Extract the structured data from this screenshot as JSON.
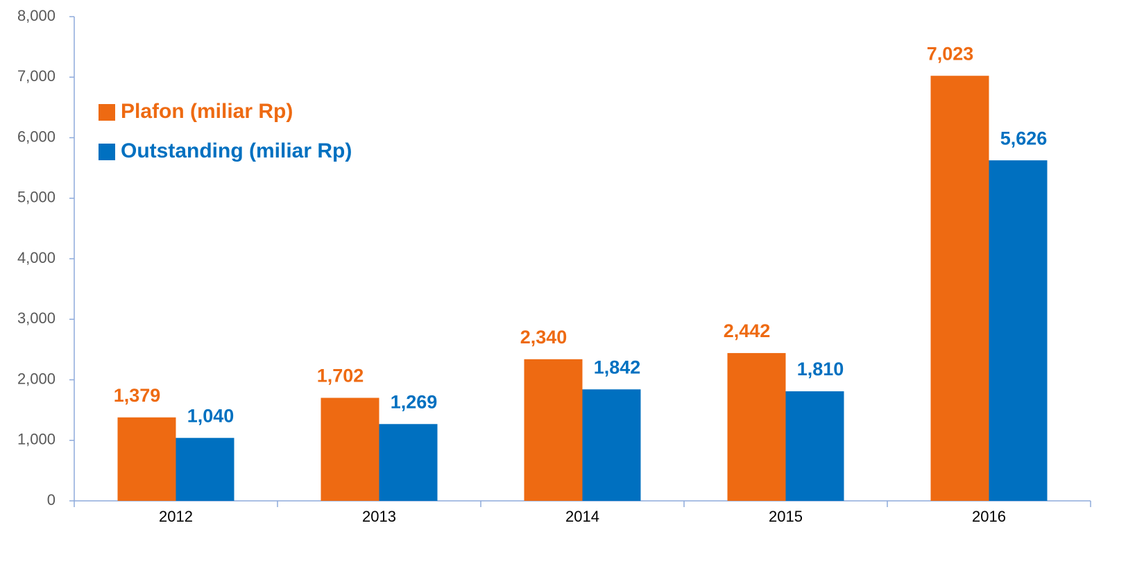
{
  "chart_data": {
    "type": "bar",
    "categories": [
      "2012",
      "2013",
      "2014",
      "2015",
      "2016"
    ],
    "series": [
      {
        "name": "Plafon (miliar Rp)",
        "color": "#ee6a12",
        "values": [
          1379,
          1702,
          2340,
          2442,
          7023
        ],
        "value_labels": [
          "1,379",
          "1,702",
          "2,340",
          "2,442",
          "7,023"
        ]
      },
      {
        "name": "Outstanding (miliar Rp)",
        "color": "#0070c0",
        "values": [
          1040,
          1269,
          1842,
          1810,
          5626
        ],
        "value_labels": [
          "1,040",
          "1,269",
          "1,842",
          "1,810",
          "5,626"
        ]
      }
    ],
    "ylim": [
      0,
      8000
    ],
    "yticks": [
      0,
      {
        "value": 1000,
        "label": "1,000"
      },
      {
        "value": 2000,
        "label": "2,000"
      },
      {
        "value": 3000,
        "label": "3,000"
      },
      {
        "value": 4000,
        "label": "4,000"
      },
      {
        "value": 5000,
        "label": "5,000"
      },
      {
        "value": 6000,
        "label": "6,000"
      },
      {
        "value": 7000,
        "label": "7,000"
      },
      {
        "value": 8000,
        "label": "8,000"
      }
    ],
    "legend": "upper left",
    "grid": false
  }
}
